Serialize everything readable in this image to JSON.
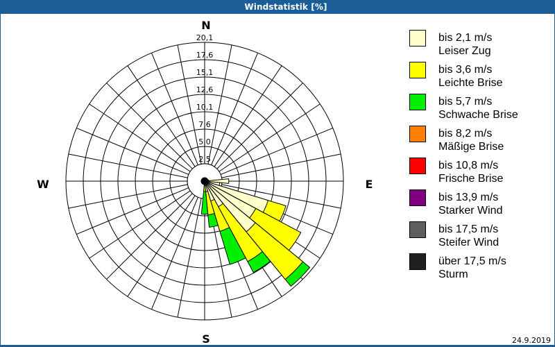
{
  "window": {
    "title": "Windstatistik [%]"
  },
  "compass": {
    "north": "N",
    "east": "E",
    "south": "S",
    "west": "W"
  },
  "legend": {
    "items": [
      {
        "range": "bis 2,1 m/s",
        "label": "Leiser Zug",
        "color": "#FFFFCC"
      },
      {
        "range": "bis 3,6 m/s",
        "label": "Leichte Brise",
        "color": "#FFFF00"
      },
      {
        "range": "bis 5,7 m/s",
        "label": "Schwache Brise",
        "color": "#00F000"
      },
      {
        "range": "bis 8,2 m/s",
        "label": "Mäßige Brise",
        "color": "#FF8000"
      },
      {
        "range": "bis 10,8 m/s",
        "label": "Frische Brise",
        "color": "#FF0000"
      },
      {
        "range": "bis 13,9 m/s",
        "label": "Starker Wind",
        "color": "#800080"
      },
      {
        "range": "bis 17,5 m/s",
        "label": "Steifer Wind",
        "color": "#5E5E5E"
      },
      {
        "range": "über 17,5 m/s",
        "label": "Sturm",
        "color": "#202020"
      }
    ]
  },
  "footer": {
    "date": "24.9.2019"
  },
  "chart_data": {
    "type": "bar",
    "polar": true,
    "title": "Windstatistik [%]",
    "unit": "%",
    "rmax": 20.1,
    "radial_ticks": [
      2.5,
      5.0,
      7.6,
      10.1,
      12.6,
      15.1,
      17.6,
      20.1
    ],
    "radial_tick_labels": [
      "2,5",
      "5,0",
      "7,6",
      "10,1",
      "12,6",
      "15,1",
      "17,6",
      "20,1"
    ],
    "sector_width_deg": 11.25,
    "categories": [
      0,
      11.25,
      22.5,
      33.75,
      45,
      56.25,
      67.5,
      78.75,
      90,
      101.25,
      112.5,
      123.75,
      135,
      146.25,
      157.5,
      168.75,
      180,
      191.25,
      202.5,
      213.75,
      225,
      236.25,
      247.5,
      258.75,
      270,
      281.25,
      292.5,
      303.75,
      315,
      326.25,
      337.5,
      348.75
    ],
    "category_meaning": "direction bearing in degrees (0 = N, clockwise)",
    "stacked": true,
    "series": [
      {
        "name": "bis 2,1 m/s Leiser Zug",
        "color": "#FFFFCC",
        "values": [
          0.5,
          0.5,
          0.5,
          0.5,
          0.5,
          0.5,
          0.4,
          0.6,
          3.5,
          2.2,
          9.6,
          8.4,
          9.5,
          4.2,
          3.0,
          1.5,
          0.6,
          0.5,
          0.5,
          0.5,
          0.5,
          0.5,
          0.5,
          0.5,
          0.5,
          0.5,
          0.5,
          0.5,
          0.5,
          0.5,
          0.5,
          0.5
        ]
      },
      {
        "name": "bis 3,6 m/s Leichte Brise",
        "color": "#FFFF00",
        "values": [
          0,
          0,
          0,
          0,
          0,
          0,
          0,
          0,
          0,
          0,
          2.7,
          7.4,
          8.9,
          9.0,
          4.6,
          3.4,
          0.9,
          0,
          0,
          0,
          0,
          0,
          0,
          0,
          0,
          0,
          0,
          0,
          0,
          0,
          0,
          0
        ]
      },
      {
        "name": "bis 5,7 m/s Schwache Brise",
        "color": "#00F000",
        "values": [
          0,
          0,
          0,
          0,
          0,
          0,
          0,
          0,
          0,
          0,
          0,
          0,
          1.3,
          1.8,
          5.0,
          1.8,
          3.3,
          0,
          0,
          0,
          0,
          0,
          0,
          0,
          0,
          0,
          0,
          0,
          0,
          0,
          0,
          0
        ]
      },
      {
        "name": "bis 8,2 m/s Mäßige Brise",
        "color": "#FF8000",
        "values": [
          0,
          0,
          0,
          0,
          0,
          0,
          0,
          0,
          0,
          0,
          0,
          0,
          0,
          0,
          0,
          0,
          0,
          0,
          0,
          0,
          0,
          0,
          0,
          0,
          0,
          0,
          0,
          0,
          0,
          0,
          0,
          0
        ]
      },
      {
        "name": "bis 10,8 m/s Frische Brise",
        "color": "#FF0000",
        "values": [
          0,
          0,
          0,
          0,
          0,
          0,
          0,
          0,
          0,
          0,
          0,
          0,
          0,
          0,
          0,
          0,
          0,
          0,
          0,
          0,
          0,
          0,
          0,
          0,
          0,
          0,
          0,
          0,
          0,
          0,
          0,
          0
        ]
      },
      {
        "name": "bis 13,9 m/s Starker Wind",
        "color": "#800080",
        "values": [
          0,
          0,
          0,
          0,
          0,
          0,
          0,
          0,
          0,
          0,
          0,
          0,
          0,
          0,
          0,
          0,
          0,
          0,
          0,
          0,
          0,
          0,
          0,
          0,
          0,
          0,
          0,
          0,
          0,
          0,
          0,
          0
        ]
      },
      {
        "name": "bis 17,5 m/s Steifer Wind",
        "color": "#5E5E5E",
        "values": [
          0,
          0,
          0,
          0,
          0,
          0,
          0,
          0,
          0,
          0,
          0,
          0,
          0,
          0,
          0,
          0,
          0,
          0,
          0,
          0,
          0,
          0,
          0,
          0,
          0,
          0,
          0,
          0,
          0,
          0,
          0,
          0
        ]
      },
      {
        "name": "über 17,5 m/s Sturm",
        "color": "#202020",
        "values": [
          0,
          0,
          0,
          0,
          0,
          0,
          0,
          0,
          0,
          0,
          0,
          0,
          0,
          0,
          0,
          0,
          0,
          0,
          0,
          0,
          0,
          0,
          0,
          0,
          0,
          0,
          0,
          0,
          0,
          0,
          0,
          0
        ]
      }
    ],
    "grid": true,
    "legend_position": "right"
  }
}
